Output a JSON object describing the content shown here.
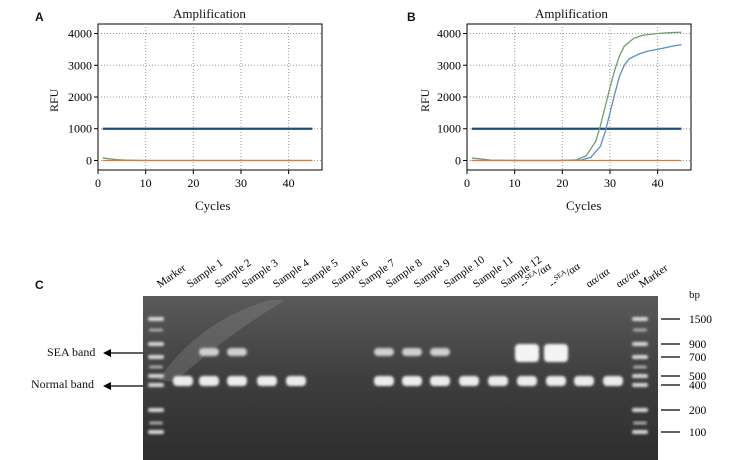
{
  "panel_a": {
    "label": "A",
    "chart_data": {
      "type": "line",
      "title": "Amplification",
      "xlabel": "Cycles",
      "ylabel": "RFU",
      "xlim": [
        0,
        47
      ],
      "ylim": [
        -300,
        4300
      ],
      "xticks": [
        0,
        10,
        20,
        30,
        40
      ],
      "yticks": [
        0,
        1000,
        2000,
        3000,
        4000
      ],
      "grid": true,
      "series": [
        {
          "color": "#1f4e79",
          "x": [
            1,
            45
          ],
          "values": [
            1000,
            1000
          ]
        },
        {
          "color": "#6f9d6f",
          "x": [
            1,
            2,
            3,
            4,
            6,
            10,
            20,
            30,
            40,
            45
          ],
          "values": [
            80,
            60,
            40,
            25,
            10,
            0,
            0,
            0,
            0,
            0
          ]
        },
        {
          "color": "#e07a2e",
          "x": [
            1,
            45
          ],
          "values": [
            0,
            0
          ]
        }
      ]
    }
  },
  "panel_b": {
    "label": "B",
    "chart_data": {
      "type": "line",
      "title": "Amplification",
      "xlabel": "Cycles",
      "ylabel": "RFU",
      "xlim": [
        0,
        47
      ],
      "ylim": [
        -300,
        4300
      ],
      "xticks": [
        0,
        10,
        20,
        30,
        40
      ],
      "yticks": [
        0,
        1000,
        2000,
        3000,
        4000
      ],
      "grid": true,
      "series": [
        {
          "color": "#1f4e79",
          "x": [
            1,
            45
          ],
          "values": [
            1000,
            1000
          ]
        },
        {
          "color": "#6f9d6f",
          "x": [
            1,
            5,
            10,
            20,
            23,
            25,
            27,
            28,
            29,
            30,
            31,
            32,
            33,
            35,
            37,
            40,
            43,
            45
          ],
          "values": [
            80,
            10,
            0,
            0,
            20,
            150,
            600,
            1100,
            1700,
            2300,
            2850,
            3300,
            3600,
            3850,
            3950,
            4000,
            4030,
            4040
          ]
        },
        {
          "color": "#5b8fbf",
          "x": [
            1,
            10,
            20,
            24,
            26,
            28,
            29,
            30,
            31,
            32,
            33,
            34,
            36,
            38,
            40,
            43,
            45
          ],
          "values": [
            0,
            0,
            0,
            15,
            100,
            450,
            900,
            1500,
            2100,
            2650,
            3000,
            3200,
            3350,
            3450,
            3500,
            3600,
            3650
          ]
        },
        {
          "color": "#e07a2e",
          "x": [
            1,
            45
          ],
          "values": [
            0,
            0
          ]
        }
      ]
    }
  },
  "panel_c": {
    "label": "C",
    "lanes": [
      "Marker",
      "Sample 1",
      "Sample 2",
      "Sample 3",
      "Sample 4",
      "Sample 5",
      "Sample 6",
      "Sample 7",
      "Sample 8",
      "Sample 9",
      "Sample 10",
      "Sample 11",
      "Sample 12",
      "--SEA/αα",
      "--SEA/αα",
      "αα/αα",
      "αα/αα",
      "Marker"
    ],
    "lane_sup_prefix": "--",
    "lane_sup": "SEA",
    "lane_sup_suffix": "/αα",
    "sea_band_label": "SEA band",
    "normal_band_label": "Normal band",
    "bp_header": "bp",
    "marker_sizes": [
      "1500",
      "900",
      "700",
      "500",
      "400",
      "200",
      "100"
    ],
    "gel_bands": {
      "sea": [
        false,
        false,
        true,
        true,
        false,
        false,
        false,
        false,
        true,
        true,
        true,
        false,
        false,
        true,
        true,
        false,
        false,
        false
      ],
      "normal": [
        false,
        true,
        true,
        true,
        true,
        true,
        false,
        false,
        true,
        true,
        true,
        true,
        true,
        true,
        true,
        true,
        true,
        false
      ]
    }
  }
}
